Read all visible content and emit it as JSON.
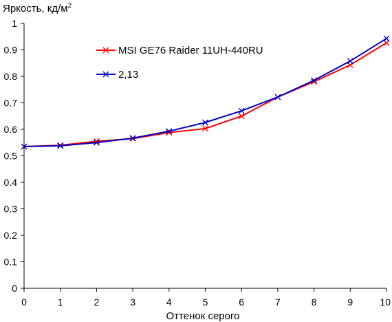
{
  "chart_data": {
    "type": "line",
    "ylabel_main": "Яркость, кд/м",
    "ylabel_sup": "2",
    "xlabel": "Оттенок серого",
    "xlim": [
      0,
      10
    ],
    "ylim": [
      0,
      1
    ],
    "x_ticks": [
      "0",
      "1",
      "2",
      "3",
      "4",
      "5",
      "6",
      "7",
      "8",
      "9",
      "10"
    ],
    "y_ticks": [
      "0",
      "0.1",
      "0.2",
      "0.3",
      "0.4",
      "0.5",
      "0.6",
      "0.7",
      "0.8",
      "0.9",
      "1"
    ],
    "grid": false,
    "legend_position": "top-left",
    "x": [
      0,
      1,
      2,
      3,
      4,
      5,
      6,
      7,
      8,
      9,
      10
    ],
    "series": [
      {
        "name": "MSI GE76 Raider 11UH-440RU",
        "color": "#ff0000",
        "values": [
          0.535,
          0.54,
          0.555,
          0.565,
          0.588,
          0.603,
          0.65,
          0.722,
          0.78,
          0.843,
          0.927
        ]
      },
      {
        "name": "2,13",
        "color": "#0000c0",
        "values": [
          0.535,
          0.538,
          0.55,
          0.567,
          0.593,
          0.626,
          0.67,
          0.722,
          0.785,
          0.858,
          0.943
        ]
      }
    ]
  }
}
